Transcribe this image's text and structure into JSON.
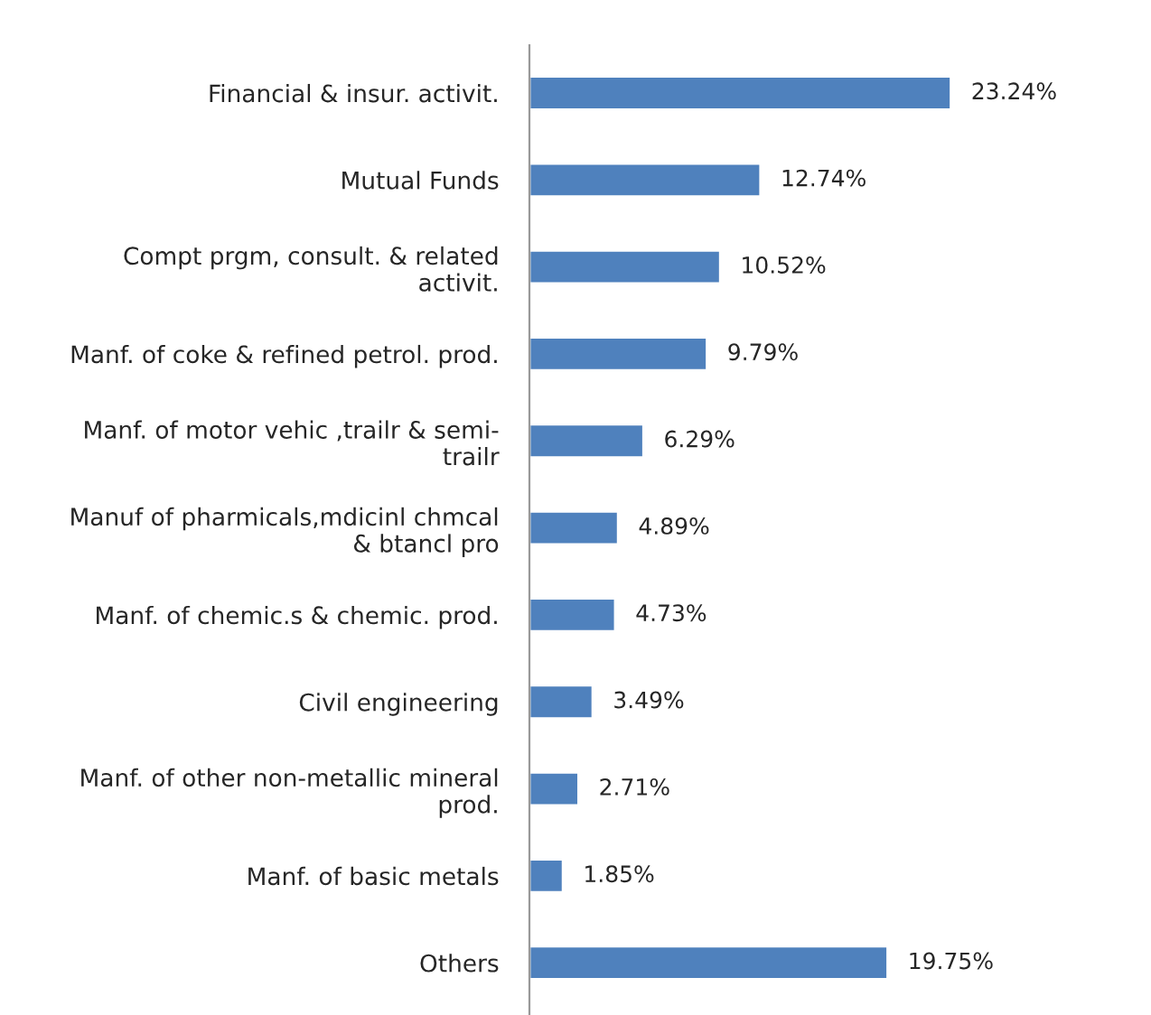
{
  "chart_data": {
    "type": "bar",
    "orientation": "horizontal",
    "categories": [
      "Financial & insur. activit.",
      "Mutual Funds",
      "Compt prgm, consult. & related\nactivit.",
      "Manf. of coke & refined petrol. prod.",
      "Manf. of motor vehic ,trailr & semi-\ntrailr",
      "Manuf of pharmicals,mdicinl chmcal\n& btancl pro",
      "Manf. of chemic.s & chemic. prod.",
      "Civil engineering",
      "Manf. of other non-metallic mineral\nprod.",
      "Manf. of basic metals",
      "Others"
    ],
    "values": [
      23.24,
      12.74,
      10.52,
      9.79,
      6.29,
      4.89,
      4.73,
      3.49,
      2.71,
      1.85,
      19.75
    ],
    "value_labels": [
      "23.24%",
      "12.74%",
      "10.52%",
      "9.79%",
      "6.29%",
      "4.89%",
      "4.73%",
      "3.49%",
      "2.71%",
      "1.85%",
      "19.75%"
    ],
    "color": "#4f81bd",
    "grid": false,
    "legend": false
  }
}
